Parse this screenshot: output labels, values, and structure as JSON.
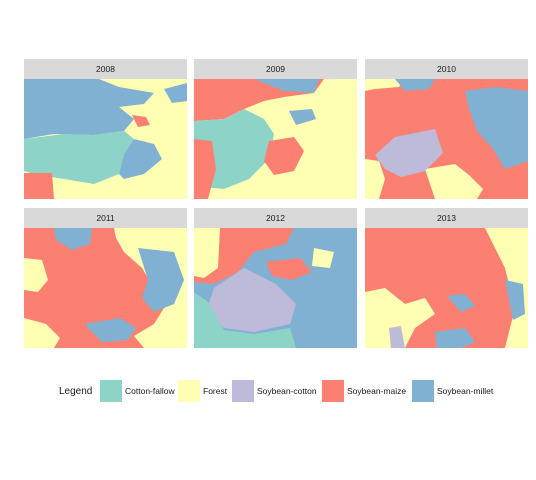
{
  "colors": {
    "cotton_fallow": "#8dd3c7",
    "forest": "#ffffb3",
    "soybean_cotton": "#bebada",
    "soybean_maize": "#fb8072",
    "soybean_millet": "#80b1d3"
  },
  "panels": [
    {
      "year": "2008",
      "dominant": "forest"
    },
    {
      "year": "2009",
      "dominant": "forest"
    },
    {
      "year": "2010",
      "dominant": "soybean_maize"
    },
    {
      "year": "2011",
      "dominant": "soybean_maize"
    },
    {
      "year": "2012",
      "dominant": "soybean_millet"
    },
    {
      "year": "2013",
      "dominant": "soybean_maize"
    }
  ],
  "legend": {
    "title": "Legend",
    "items": [
      {
        "key": "cotton_fallow",
        "label": "Cotton-fallow"
      },
      {
        "key": "forest",
        "label": "Forest"
      },
      {
        "key": "soybean_cotton",
        "label": "Soybean-cotton"
      },
      {
        "key": "soybean_maize",
        "label": "Soybean-maize"
      },
      {
        "key": "soybean_millet",
        "label": "Soybean-millet"
      }
    ]
  }
}
